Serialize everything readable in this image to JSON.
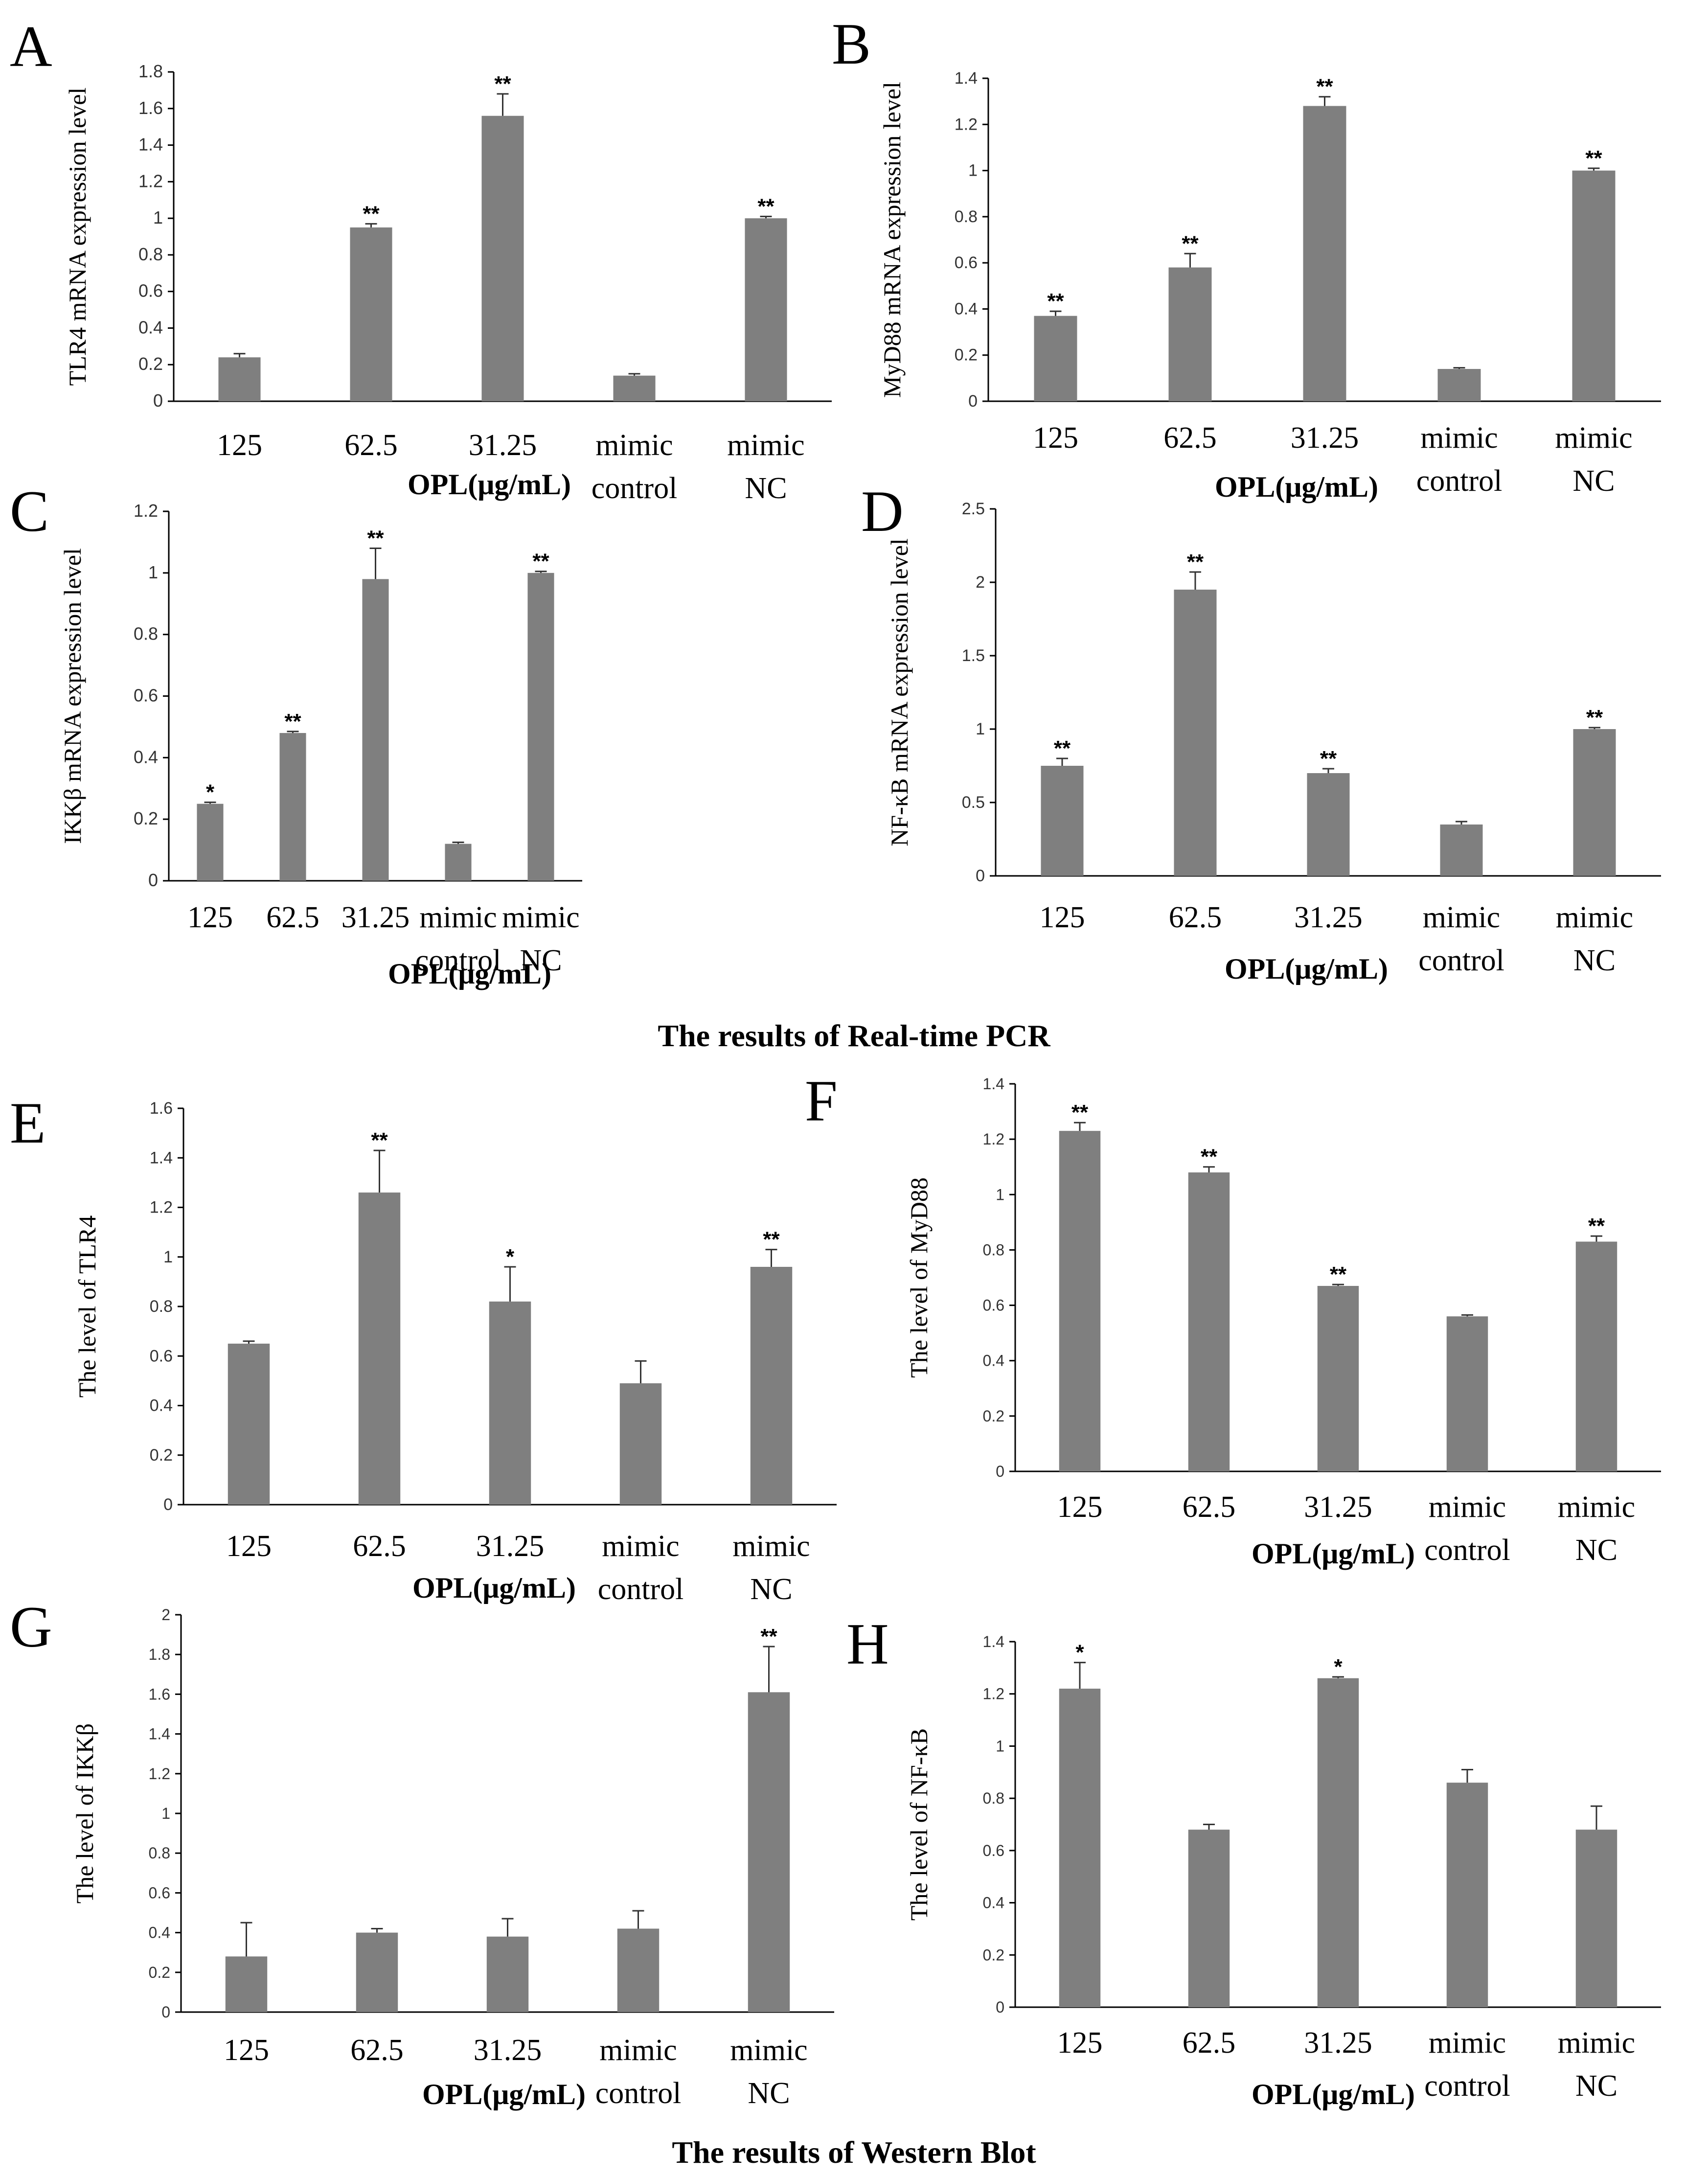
{
  "figure": {
    "pcr_title": "The results of Real-time PCR",
    "wb_title": "The results of Western Blot"
  },
  "chart_data": [
    {
      "id": "A",
      "panel_label": "A",
      "type": "bar",
      "title": "",
      "ylabel": "TLR4 mRNA expression level",
      "xlabel": "OPL(μg/mL)",
      "categories": [
        "125",
        "62.5",
        "31.25",
        "mimic control",
        "mimic NC"
      ],
      "values": [
        0.24,
        0.95,
        1.56,
        0.14,
        1.0
      ],
      "errors": [
        0.02,
        0.02,
        0.12,
        0.01,
        0.01
      ],
      "significance": [
        "",
        "**",
        "**",
        "",
        "**"
      ],
      "ylim": [
        0,
        1.8
      ],
      "yticks": [
        "0",
        "0.2",
        "0.4",
        "0.6",
        "0.8",
        "1",
        "1.2",
        "1.4",
        "1.6",
        "1.8"
      ],
      "grid": false
    },
    {
      "id": "B",
      "panel_label": "B",
      "type": "bar",
      "title": "",
      "ylabel": "MyD88 mRNA expression level",
      "xlabel": "OPL(μg/mL)",
      "categories": [
        "125",
        "62.5",
        "31.25",
        "mimic control",
        "mimic NC"
      ],
      "values": [
        0.37,
        0.58,
        1.28,
        0.14,
        1.0
      ],
      "errors": [
        0.02,
        0.06,
        0.04,
        0.005,
        0.01
      ],
      "significance": [
        "**",
        "**",
        "**",
        "",
        "**"
      ],
      "ylim": [
        0,
        1.4
      ],
      "yticks": [
        "0",
        "0.2",
        "0.4",
        "0.6",
        "0.8",
        "1",
        "1.2",
        "1.4"
      ],
      "grid": false
    },
    {
      "id": "C",
      "panel_label": "C",
      "type": "bar",
      "title": "",
      "ylabel": "IKKβ mRNA expression level",
      "xlabel": "OPL(μg/mL)",
      "categories": [
        "125",
        "62.5",
        "31.25",
        "mimic control",
        "mimic NC"
      ],
      "values": [
        0.25,
        0.48,
        0.98,
        0.12,
        1.0
      ],
      "errors": [
        0.005,
        0.005,
        0.1,
        0.005,
        0.005
      ],
      "significance": [
        "*",
        "**",
        "**",
        "",
        "**"
      ],
      "ylim": [
        0,
        1.2
      ],
      "yticks": [
        "0",
        "0.2",
        "0.4",
        "0.6",
        "0.8",
        "1",
        "1.2"
      ],
      "grid": false
    },
    {
      "id": "D",
      "panel_label": "D",
      "type": "bar",
      "title": "",
      "ylabel": "NF-κB mRNA expression level",
      "xlabel": "OPL(μg/mL)",
      "categories": [
        "125",
        "62.5",
        "31.25",
        "mimic control",
        "mimic NC"
      ],
      "values": [
        0.75,
        1.95,
        0.7,
        0.35,
        1.0
      ],
      "errors": [
        0.05,
        0.12,
        0.03,
        0.02,
        0.01
      ],
      "significance": [
        "**",
        "**",
        "**",
        "",
        "**"
      ],
      "ylim": [
        0,
        2.5
      ],
      "yticks": [
        "0",
        "0.5",
        "1",
        "1.5",
        "2",
        "2.5"
      ],
      "grid": false
    },
    {
      "id": "E",
      "panel_label": "E",
      "type": "bar",
      "title": "",
      "ylabel": "The level of TLR4",
      "xlabel": "OPL(μg/mL)",
      "categories": [
        "125",
        "62.5",
        "31.25",
        "mimic control",
        "mimic NC"
      ],
      "values": [
        0.65,
        1.26,
        0.82,
        0.49,
        0.96
      ],
      "errors": [
        0.01,
        0.17,
        0.14,
        0.09,
        0.07
      ],
      "significance": [
        "",
        "**",
        "*",
        "",
        "**"
      ],
      "ylim": [
        0,
        1.6
      ],
      "yticks": [
        "0",
        "0.2",
        "0.4",
        "0.6",
        "0.8",
        "1",
        "1.2",
        "1.4",
        "1.6"
      ],
      "grid": false
    },
    {
      "id": "F",
      "panel_label": "F",
      "type": "bar",
      "title": "",
      "ylabel": "The level of MyD88",
      "xlabel": "OPL(μg/mL)",
      "categories": [
        "125",
        "62.5",
        "31.25",
        "mimic control",
        "mimic NC"
      ],
      "values": [
        1.23,
        1.08,
        0.67,
        0.56,
        0.83
      ],
      "errors": [
        0.03,
        0.02,
        0.005,
        0.005,
        0.02
      ],
      "significance": [
        "**",
        "**",
        "**",
        "",
        "**"
      ],
      "ylim": [
        0,
        1.4
      ],
      "yticks": [
        "0",
        "0.2",
        "0.4",
        "0.6",
        "0.8",
        "1",
        "1.2",
        "1.4"
      ],
      "grid": false
    },
    {
      "id": "G",
      "panel_label": "G",
      "type": "bar",
      "title": "",
      "ylabel": "The level of IKKβ",
      "xlabel": "OPL(μg/mL)",
      "categories": [
        "125",
        "62.5",
        "31.25",
        "mimic control",
        "mimic NC"
      ],
      "values": [
        0.28,
        0.4,
        0.38,
        0.42,
        1.61
      ],
      "errors": [
        0.17,
        0.02,
        0.09,
        0.09,
        0.23
      ],
      "significance": [
        "",
        "",
        "",
        "",
        "**"
      ],
      "ylim": [
        0,
        2
      ],
      "yticks": [
        "0",
        "0.2",
        "0.4",
        "0.6",
        "0.8",
        "1",
        "1.2",
        "1.4",
        "1.6",
        "1.8",
        "2"
      ],
      "grid": false
    },
    {
      "id": "H",
      "panel_label": "H",
      "type": "bar",
      "title": "",
      "ylabel": "The level of NF-κB",
      "xlabel": "OPL(μg/mL)",
      "categories": [
        "125",
        "62.5",
        "31.25",
        "mimic control",
        "mimic NC"
      ],
      "values": [
        1.22,
        0.68,
        1.26,
        0.86,
        0.68
      ],
      "errors": [
        0.1,
        0.02,
        0.005,
        0.05,
        0.09
      ],
      "significance": [
        "*",
        "",
        "*",
        "",
        ""
      ],
      "ylim": [
        0,
        1.4
      ],
      "yticks": [
        "0",
        "0.2",
        "0.4",
        "0.6",
        "0.8",
        "1",
        "1.2",
        "1.4"
      ],
      "grid": false
    }
  ]
}
